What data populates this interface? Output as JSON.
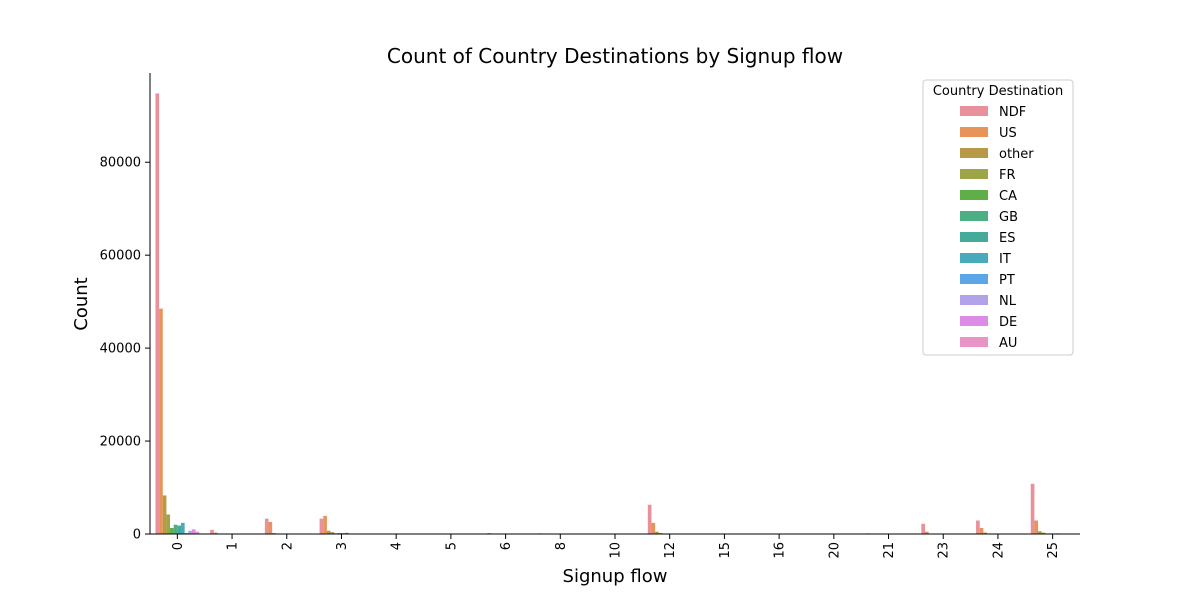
{
  "chart_data": {
    "type": "bar",
    "title": "Count of Country Destinations by Signup flow",
    "xlabel": "Signup flow",
    "ylabel": "Count",
    "ylim": [
      0,
      99200
    ],
    "yticks": [
      0,
      20000,
      40000,
      60000,
      80000
    ],
    "grid": false,
    "legend": {
      "title": "Country Destination",
      "placement": "top-right"
    },
    "categories": [
      "0",
      "1",
      "2",
      "3",
      "4",
      "5",
      "6",
      "8",
      "10",
      "12",
      "15",
      "16",
      "20",
      "21",
      "23",
      "24",
      "25"
    ],
    "series": [
      {
        "name": "NDF",
        "color": "#e8919b",
        "values": [
          94800,
          900,
          3300,
          3300,
          20,
          20,
          80,
          150,
          20,
          6300,
          20,
          20,
          20,
          150,
          2200,
          2900,
          10800
        ]
      },
      {
        "name": "US",
        "color": "#e8935a",
        "values": [
          48500,
          300,
          2600,
          3900,
          10,
          10,
          200,
          100,
          10,
          2400,
          10,
          10,
          10,
          50,
          500,
          1300,
          2900
        ]
      },
      {
        "name": "other",
        "color": "#b89a46",
        "values": [
          8300,
          50,
          200,
          700,
          0,
          0,
          20,
          20,
          0,
          500,
          0,
          0,
          0,
          10,
          100,
          300,
          600
        ]
      },
      {
        "name": "FR",
        "color": "#9da547",
        "values": [
          4200,
          30,
          100,
          400,
          0,
          0,
          10,
          10,
          0,
          200,
          0,
          0,
          0,
          5,
          50,
          100,
          300
        ]
      },
      {
        "name": "CA",
        "color": "#5fae48",
        "values": [
          1300,
          10,
          40,
          150,
          0,
          0,
          5,
          5,
          0,
          80,
          0,
          0,
          0,
          0,
          20,
          40,
          100
        ]
      },
      {
        "name": "GB",
        "color": "#4caf83",
        "values": [
          2000,
          20,
          60,
          200,
          0,
          0,
          5,
          5,
          0,
          100,
          0,
          0,
          0,
          0,
          20,
          50,
          120
        ]
      },
      {
        "name": "ES",
        "color": "#45aa99",
        "values": [
          1800,
          20,
          50,
          180,
          0,
          0,
          5,
          5,
          0,
          90,
          0,
          0,
          0,
          0,
          20,
          50,
          110
        ]
      },
      {
        "name": "IT",
        "color": "#48aabb",
        "values": [
          2400,
          20,
          60,
          250,
          0,
          0,
          5,
          5,
          0,
          110,
          0,
          0,
          0,
          0,
          25,
          60,
          140
        ]
      },
      {
        "name": "PT",
        "color": "#5ba6e6",
        "values": [
          200,
          5,
          10,
          30,
          0,
          0,
          0,
          0,
          0,
          10,
          0,
          0,
          0,
          0,
          0,
          5,
          10
        ]
      },
      {
        "name": "NL",
        "color": "#b2a2ea",
        "values": [
          700,
          10,
          20,
          70,
          0,
          0,
          0,
          0,
          0,
          30,
          0,
          0,
          0,
          0,
          5,
          15,
          40
        ]
      },
      {
        "name": "DE",
        "color": "#dd8ce6",
        "values": [
          1000,
          10,
          30,
          100,
          0,
          0,
          0,
          0,
          0,
          50,
          0,
          0,
          0,
          0,
          10,
          20,
          60
        ]
      },
      {
        "name": "AU",
        "color": "#ea93c6",
        "values": [
          500,
          5,
          15,
          50,
          0,
          0,
          0,
          0,
          0,
          20,
          0,
          0,
          0,
          0,
          5,
          10,
          30
        ]
      }
    ]
  }
}
